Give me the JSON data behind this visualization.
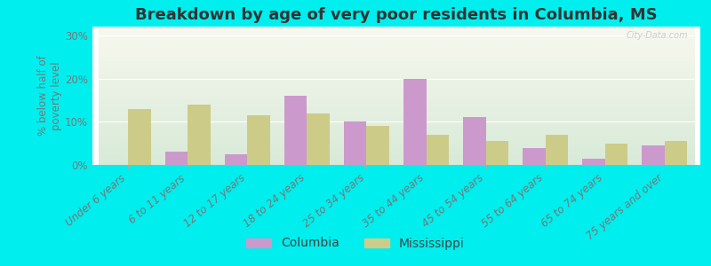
{
  "title": "Breakdown by age of very poor residents in Columbia, MS",
  "categories": [
    "Under 6 years",
    "6 to 11 years",
    "12 to 17 years",
    "18 to 24 years",
    "25 to 34 years",
    "35 to 44 years",
    "45 to 54 years",
    "55 to 64 years",
    "65 to 74 years",
    "75 years and over"
  ],
  "columbia": [
    0,
    3,
    2.5,
    16,
    10,
    20,
    11,
    4,
    1.5,
    4.5
  ],
  "mississippi": [
    13,
    14,
    11.5,
    12,
    9,
    7,
    5.5,
    7,
    5,
    5.5
  ],
  "columbia_color": "#cc99cc",
  "mississippi_color": "#cccc88",
  "background_color": "#00eeee",
  "plot_bg_top": "#f8f8ef",
  "plot_bg_bottom": "#d8ead8",
  "ylabel": "% below half of\npoverty level",
  "yticks": [
    0,
    10,
    20,
    30
  ],
  "ylim": [
    0,
    32
  ],
  "bar_width": 0.38,
  "title_fontsize": 13,
  "axis_fontsize": 8.5,
  "tick_label_color": "#777777",
  "legend_fontsize": 10,
  "watermark": "City-Data.com"
}
